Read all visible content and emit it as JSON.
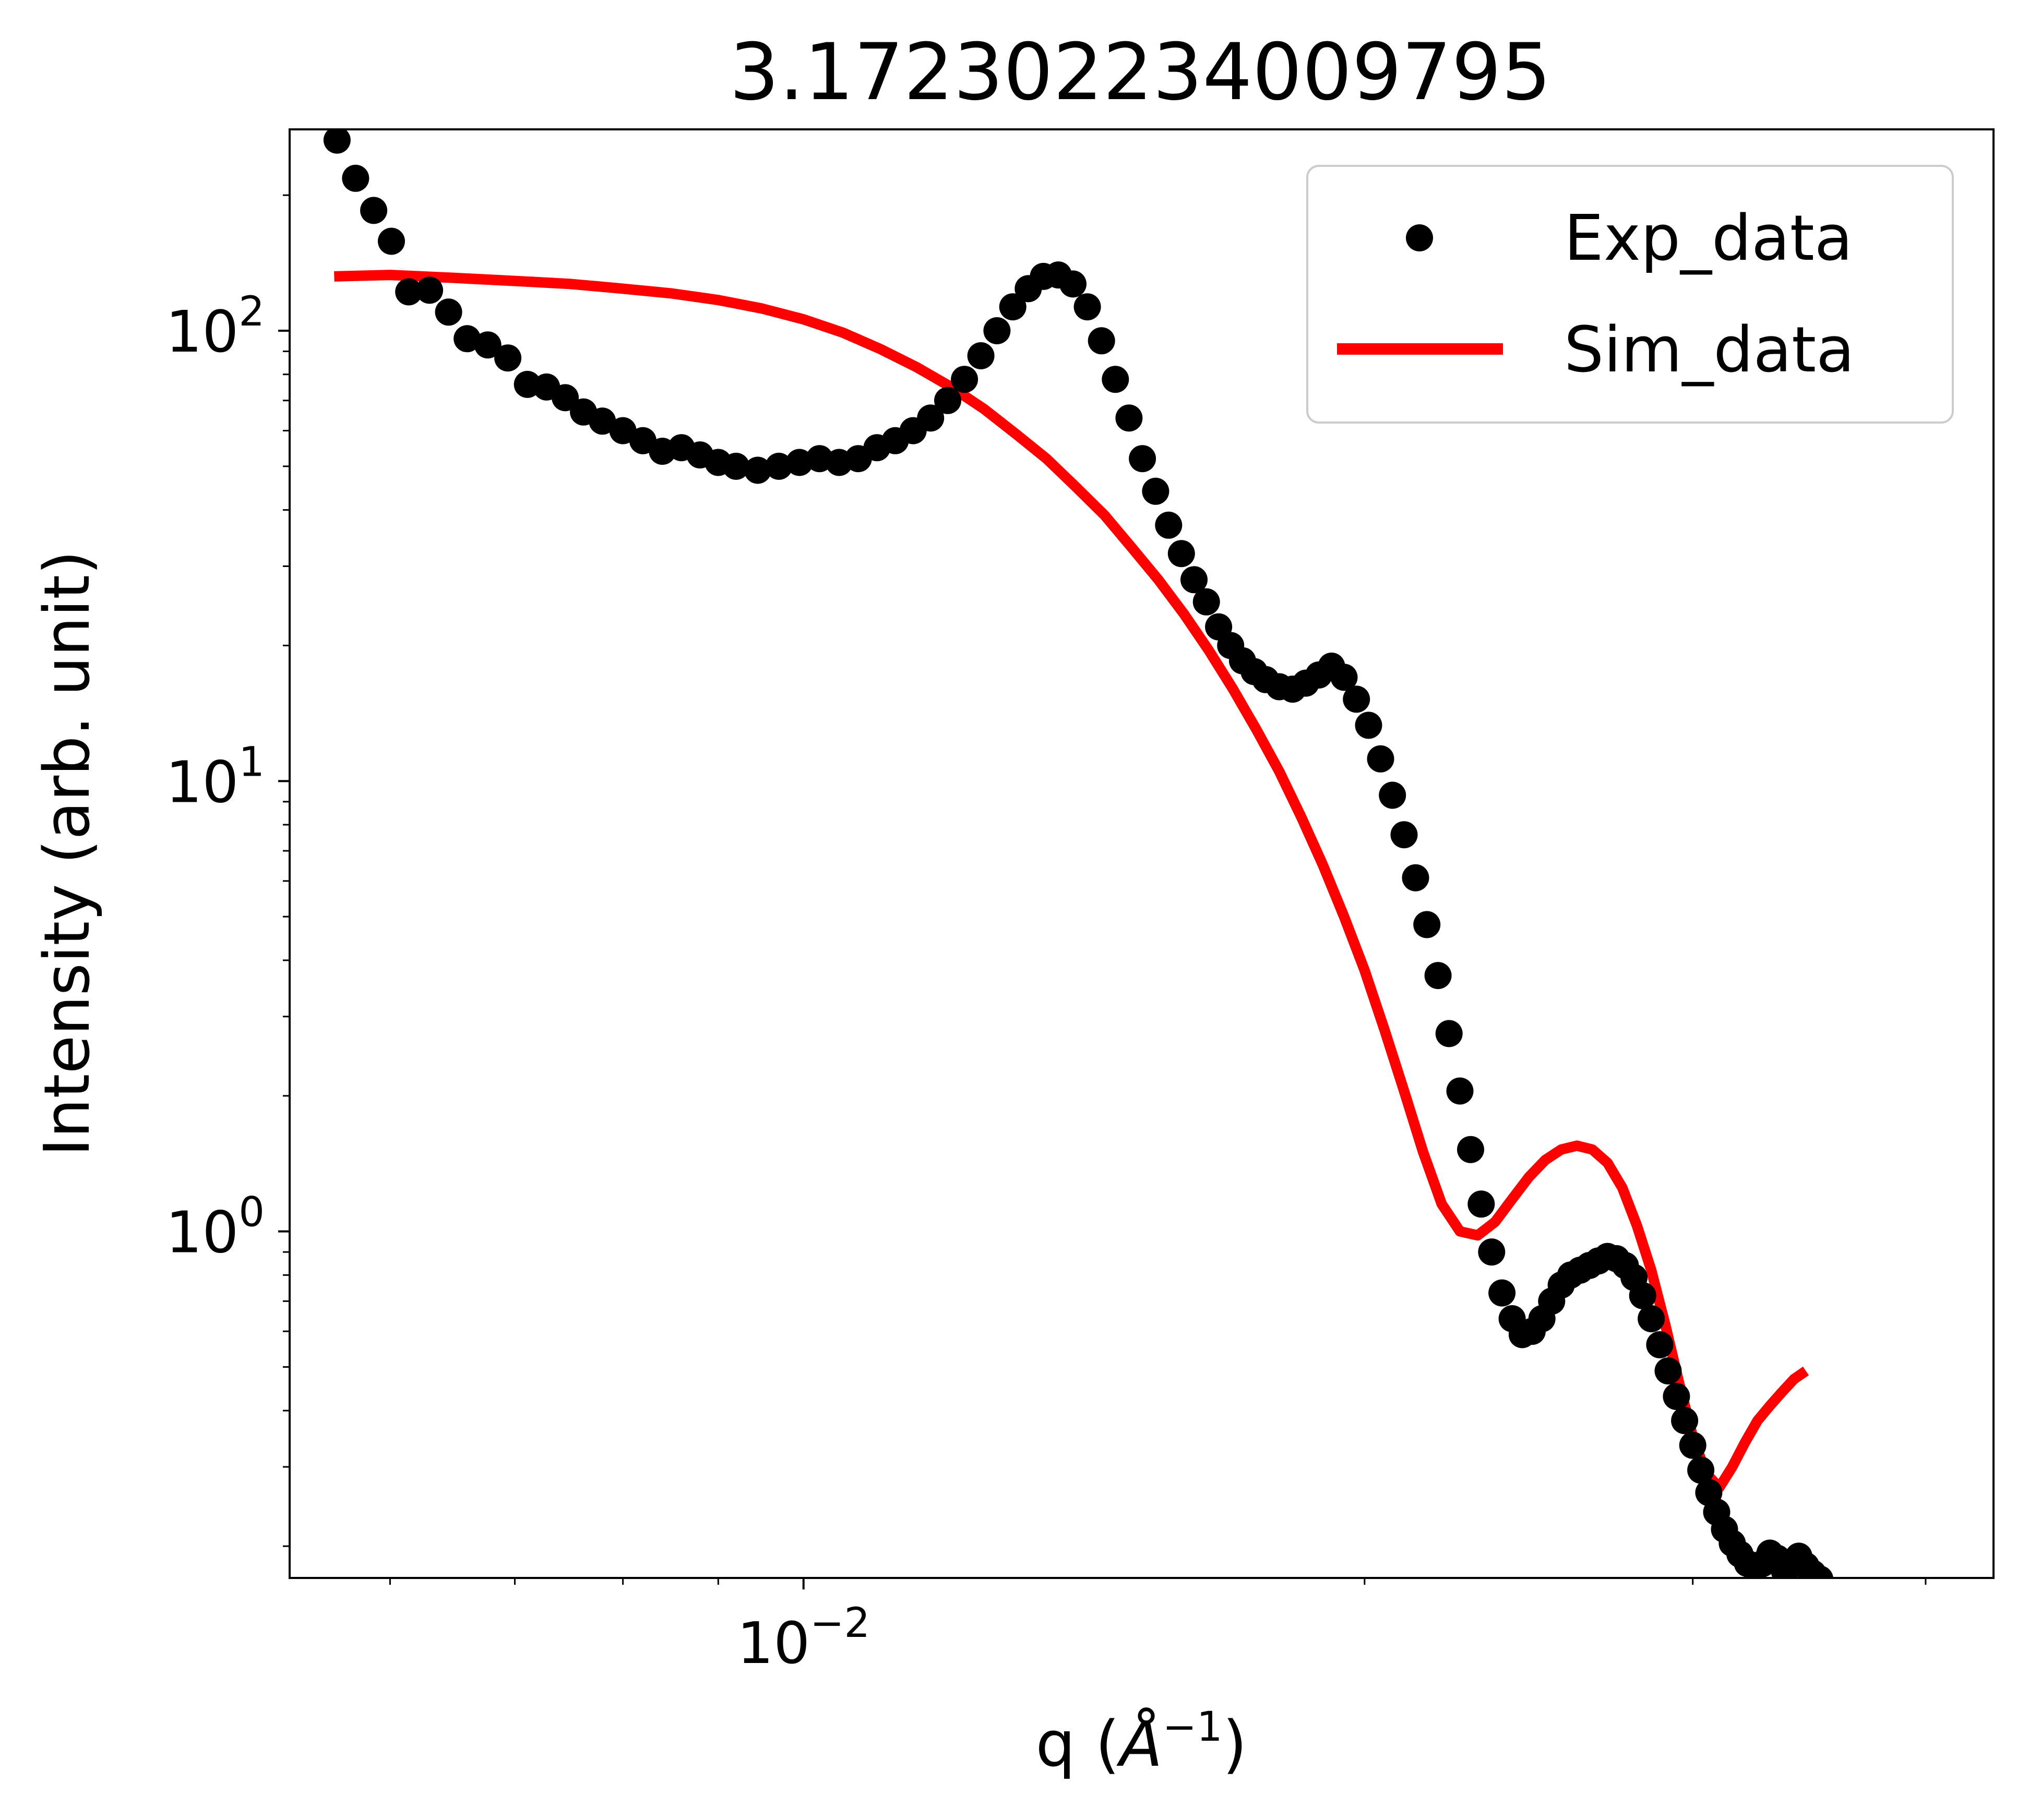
{
  "chart_data": {
    "type": "scatter",
    "title": "3.172302234009795",
    "xlabel": {
      "base": "q (",
      "symbol": "Å",
      "sup": "−1",
      "close": ")"
    },
    "ylabel": "Intensity (arb. unit)",
    "xscale": "log",
    "yscale": "log",
    "xlim": [
      0.0053,
      0.0435
    ],
    "ylim": [
      0.17,
      280
    ],
    "x_major_ticks": [
      {
        "value": 0.01,
        "base": "10",
        "exp": "−2"
      }
    ],
    "y_major_ticks": [
      {
        "value": 1,
        "base": "10",
        "exp": "0"
      },
      {
        "value": 10,
        "base": "10",
        "exp": "1"
      },
      {
        "value": 100,
        "base": "10",
        "exp": "2"
      }
    ],
    "grid": false,
    "legend": {
      "position": "top-right"
    },
    "series": [
      {
        "name": "Exp_data",
        "style": "markers",
        "color": "#000000",
        "points": [
          [
            0.00562,
            265
          ],
          [
            0.00575,
            218
          ],
          [
            0.00588,
            185
          ],
          [
            0.00601,
            158
          ],
          [
            0.00614,
            122
          ],
          [
            0.0063,
            123
          ],
          [
            0.00645,
            110
          ],
          [
            0.0066,
            96
          ],
          [
            0.00677,
            93
          ],
          [
            0.00694,
            87
          ],
          [
            0.00711,
            76
          ],
          [
            0.00728,
            75
          ],
          [
            0.00745,
            71
          ],
          [
            0.00762,
            66
          ],
          [
            0.0078,
            63
          ],
          [
            0.008,
            60
          ],
          [
            0.0082,
            57
          ],
          [
            0.0084,
            54
          ],
          [
            0.0086,
            55
          ],
          [
            0.0088,
            53
          ],
          [
            0.009,
            51
          ],
          [
            0.0092,
            50
          ],
          [
            0.00945,
            49
          ],
          [
            0.0097,
            50
          ],
          [
            0.00995,
            51
          ],
          [
            0.0102,
            52
          ],
          [
            0.01045,
            51
          ],
          [
            0.0107,
            52
          ],
          [
            0.01095,
            55
          ],
          [
            0.0112,
            57
          ],
          [
            0.01145,
            60
          ],
          [
            0.0117,
            64
          ],
          [
            0.01195,
            70
          ],
          [
            0.0122,
            78
          ],
          [
            0.01245,
            88
          ],
          [
            0.0127,
            100
          ],
          [
            0.01295,
            113
          ],
          [
            0.0132,
            124
          ],
          [
            0.01345,
            132
          ],
          [
            0.0137,
            133
          ],
          [
            0.01395,
            127
          ],
          [
            0.0142,
            113
          ],
          [
            0.01445,
            95
          ],
          [
            0.0147,
            78
          ],
          [
            0.01495,
            64
          ],
          [
            0.0152,
            52
          ],
          [
            0.01545,
            44
          ],
          [
            0.0157,
            37
          ],
          [
            0.01595,
            32
          ],
          [
            0.0162,
            28
          ],
          [
            0.01645,
            25
          ],
          [
            0.0167,
            22
          ],
          [
            0.01695,
            20
          ],
          [
            0.0172,
            18.5
          ],
          [
            0.01745,
            17.5
          ],
          [
            0.0177,
            16.8
          ],
          [
            0.018,
            16.2
          ],
          [
            0.0183,
            16.0
          ],
          [
            0.0186,
            16.5
          ],
          [
            0.0189,
            17.2
          ],
          [
            0.0192,
            18.0
          ],
          [
            0.0195,
            17.0
          ],
          [
            0.0198,
            15.2
          ],
          [
            0.0201,
            13.3
          ],
          [
            0.0204,
            11.2
          ],
          [
            0.0207,
            9.3
          ],
          [
            0.021,
            7.6
          ],
          [
            0.0213,
            6.1
          ],
          [
            0.0216,
            4.8
          ],
          [
            0.0219,
            3.7
          ],
          [
            0.0222,
            2.75
          ],
          [
            0.0225,
            2.05
          ],
          [
            0.0228,
            1.52
          ],
          [
            0.0231,
            1.15
          ],
          [
            0.0234,
            0.9
          ],
          [
            0.0237,
            0.73
          ],
          [
            0.024,
            0.64
          ],
          [
            0.0243,
            0.59
          ],
          [
            0.0246,
            0.6
          ],
          [
            0.0249,
            0.64
          ],
          [
            0.0252,
            0.7
          ],
          [
            0.0255,
            0.76
          ],
          [
            0.0258,
            0.8
          ],
          [
            0.0261,
            0.82
          ],
          [
            0.0264,
            0.84
          ],
          [
            0.0267,
            0.86
          ],
          [
            0.027,
            0.88
          ],
          [
            0.0273,
            0.87
          ],
          [
            0.0276,
            0.84
          ],
          [
            0.0279,
            0.79
          ],
          [
            0.0282,
            0.72
          ],
          [
            0.0285,
            0.64
          ],
          [
            0.0288,
            0.56
          ],
          [
            0.0291,
            0.49
          ],
          [
            0.0294,
            0.43
          ],
          [
            0.0297,
            0.38
          ],
          [
            0.03,
            0.335
          ],
          [
            0.0303,
            0.295
          ],
          [
            0.0306,
            0.263
          ],
          [
            0.0309,
            0.238
          ],
          [
            0.0312,
            0.218
          ],
          [
            0.0315,
            0.203
          ],
          [
            0.0318,
            0.192
          ],
          [
            0.0321,
            0.183
          ],
          [
            0.0324,
            0.178
          ],
          [
            0.0327,
            0.183
          ],
          [
            0.033,
            0.193
          ],
          [
            0.0333,
            0.188
          ],
          [
            0.0336,
            0.176
          ],
          [
            0.0339,
            0.182
          ],
          [
            0.0342,
            0.19
          ],
          [
            0.0345,
            0.181
          ],
          [
            0.0348,
            0.174
          ],
          [
            0.0351,
            0.169
          ]
        ]
      },
      {
        "name": "Sim_data",
        "style": "line",
        "color": "#ff0000",
        "points": [
          [
            0.0056,
            132
          ],
          [
            0.006,
            133
          ],
          [
            0.0065,
            131
          ],
          [
            0.007,
            129
          ],
          [
            0.0075,
            127
          ],
          [
            0.008,
            124
          ],
          [
            0.0085,
            121
          ],
          [
            0.009,
            117
          ],
          [
            0.0095,
            112
          ],
          [
            0.01,
            106
          ],
          [
            0.0105,
            99
          ],
          [
            0.011,
            91
          ],
          [
            0.0115,
            83
          ],
          [
            0.012,
            75
          ],
          [
            0.0125,
            67
          ],
          [
            0.013,
            59
          ],
          [
            0.0135,
            52
          ],
          [
            0.014,
            45
          ],
          [
            0.0145,
            39
          ],
          [
            0.015,
            33
          ],
          [
            0.0155,
            28
          ],
          [
            0.016,
            23.5
          ],
          [
            0.0165,
            19.5
          ],
          [
            0.017,
            16.0
          ],
          [
            0.0175,
            13.0
          ],
          [
            0.018,
            10.5
          ],
          [
            0.0185,
            8.3
          ],
          [
            0.019,
            6.5
          ],
          [
            0.0195,
            5.0
          ],
          [
            0.02,
            3.8
          ],
          [
            0.0205,
            2.8
          ],
          [
            0.021,
            2.05
          ],
          [
            0.0215,
            1.5
          ],
          [
            0.022,
            1.15
          ],
          [
            0.0225,
            1.0
          ],
          [
            0.023,
            0.98
          ],
          [
            0.0235,
            1.05
          ],
          [
            0.024,
            1.18
          ],
          [
            0.0245,
            1.32
          ],
          [
            0.025,
            1.44
          ],
          [
            0.0255,
            1.52
          ],
          [
            0.026,
            1.55
          ],
          [
            0.0265,
            1.52
          ],
          [
            0.027,
            1.42
          ],
          [
            0.0275,
            1.25
          ],
          [
            0.028,
            1.03
          ],
          [
            0.0285,
            0.82
          ],
          [
            0.029,
            0.62
          ],
          [
            0.0295,
            0.46
          ],
          [
            0.03,
            0.35
          ],
          [
            0.0305,
            0.29
          ],
          [
            0.031,
            0.27
          ],
          [
            0.0315,
            0.3
          ],
          [
            0.032,
            0.34
          ],
          [
            0.0325,
            0.38
          ],
          [
            0.033,
            0.41
          ],
          [
            0.0335,
            0.44
          ],
          [
            0.034,
            0.47
          ],
          [
            0.0345,
            0.49
          ]
        ]
      }
    ]
  }
}
